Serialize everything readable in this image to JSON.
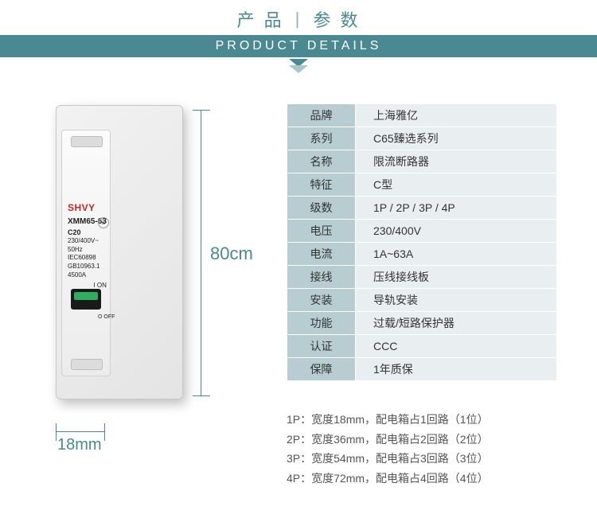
{
  "header": {
    "cn_left": "产 品",
    "cn_right": "参 数",
    "en": "PRODUCT DETAILS"
  },
  "product_label": {
    "brand": "SHVY",
    "model": "XMM65-63",
    "code": "C20",
    "spec1": "230/400V~",
    "spec2": "50Hz",
    "spec3": "IEC60898",
    "spec4": "GB10963.1",
    "spec5": "4500A",
    "on": "I ON",
    "off": "O OFF"
  },
  "dimensions": {
    "height": "80cm",
    "width": "18mm"
  },
  "specs": [
    {
      "k": "品牌",
      "v": "上海雅亿"
    },
    {
      "k": "系列",
      "v": "C65臻选系列"
    },
    {
      "k": "名称",
      "v": "限流断路器"
    },
    {
      "k": "特征",
      "v": "C型"
    },
    {
      "k": "级数",
      "v": "1P / 2P / 3P / 4P"
    },
    {
      "k": "电压",
      "v": "230/400V"
    },
    {
      "k": "电流",
      "v": "1A~63A"
    },
    {
      "k": "接线",
      "v": "压线接线板"
    },
    {
      "k": "安装",
      "v": "导轨安装"
    },
    {
      "k": "功能",
      "v": "过载/短路保护器"
    },
    {
      "k": "认证",
      "v": "CCC"
    },
    {
      "k": "保障",
      "v": "1年质保"
    }
  ],
  "notes": [
    "1P：宽度18mm，配电箱占1回路（1位）",
    "2P：宽度36mm，配电箱占2回路（2位）",
    "3P：宽度54mm，配电箱占3回路（3位）",
    "4P：宽度72mm，配电箱占4回路（4位）"
  ]
}
